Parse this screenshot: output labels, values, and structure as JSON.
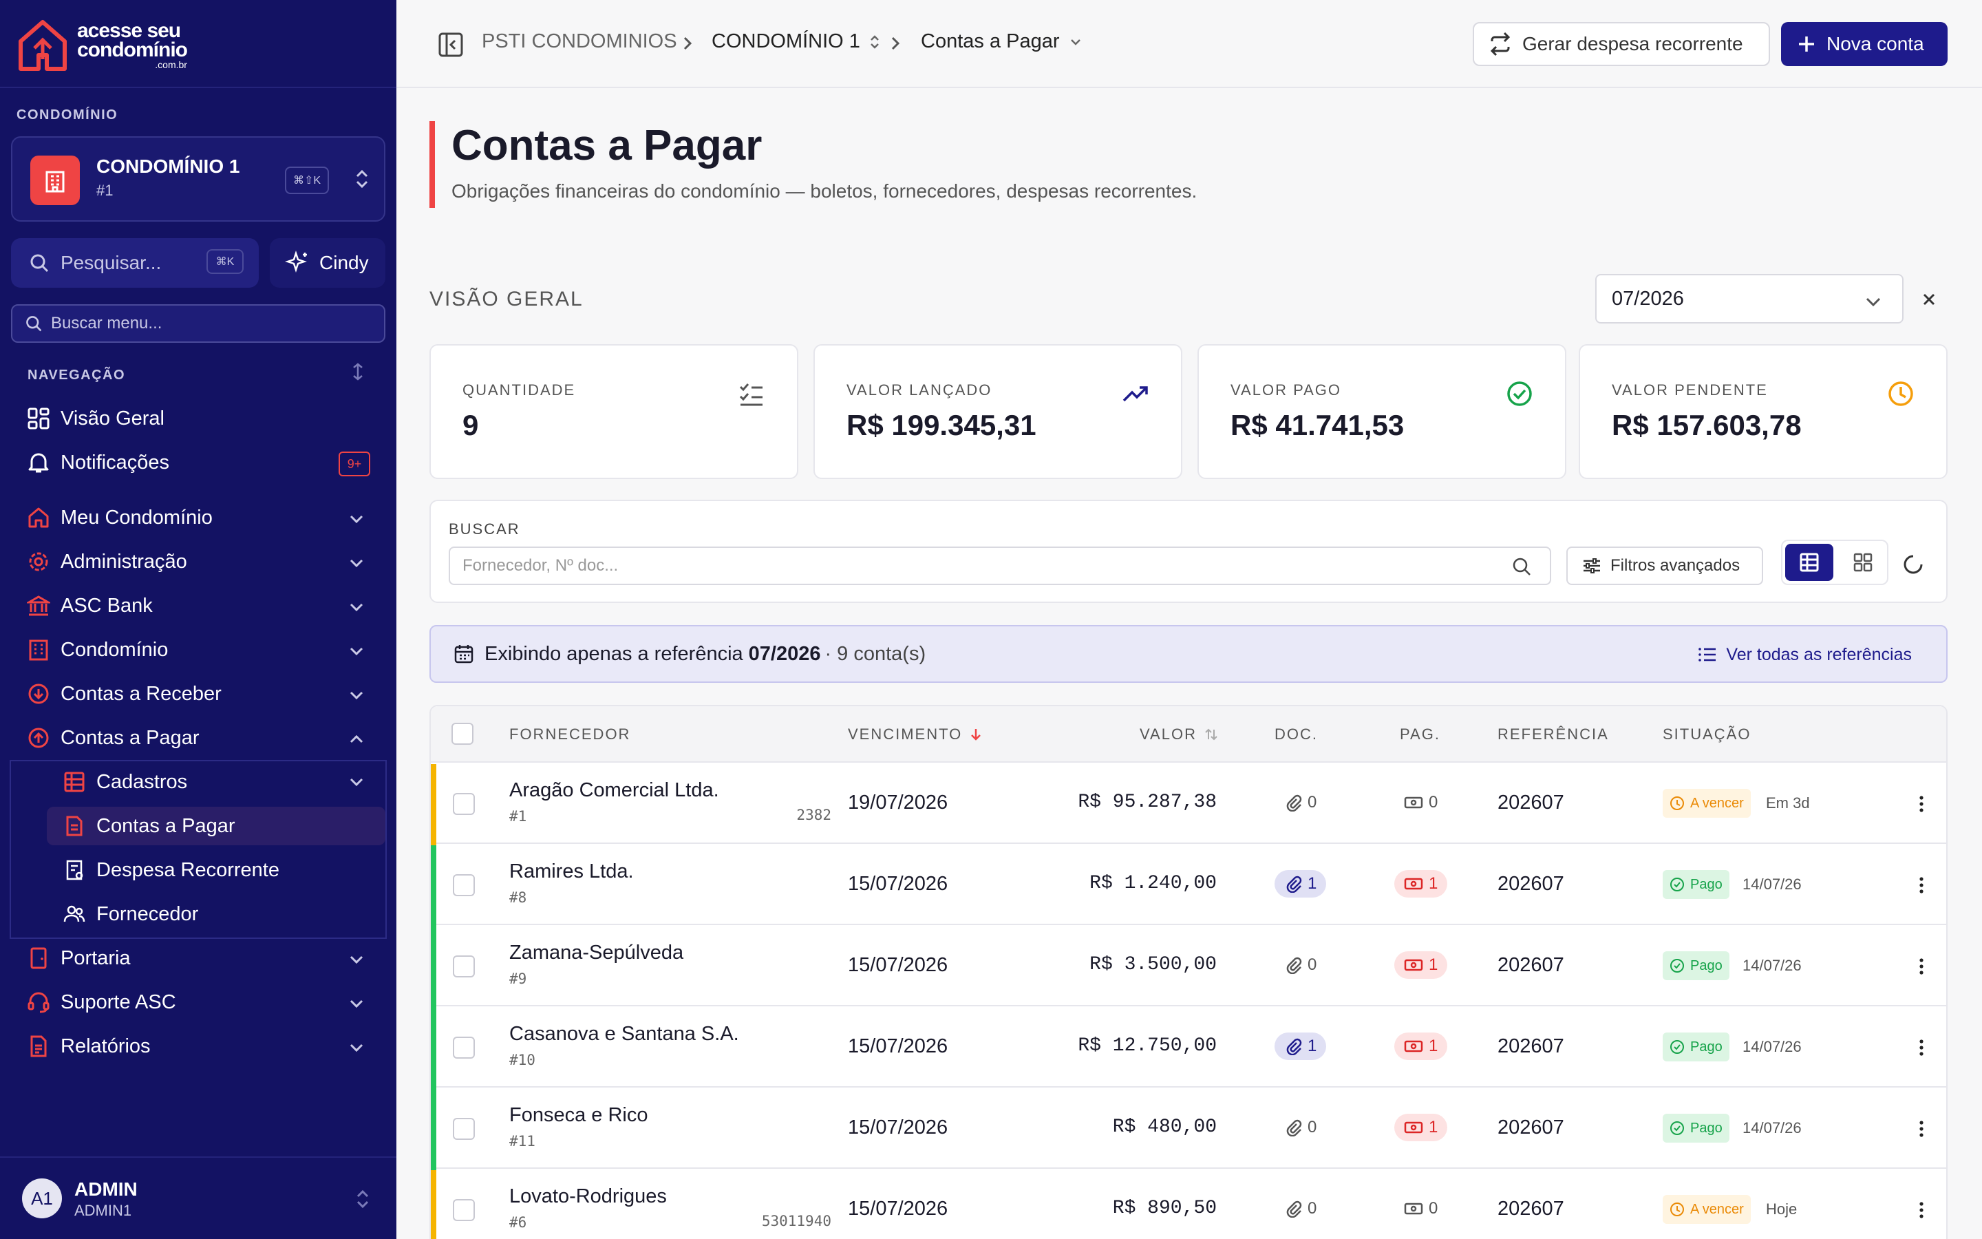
{
  "sidebar": {
    "logo": {
      "line1": "acesse seu",
      "line2": "condomínio",
      "line3": ".com.br"
    },
    "condo_section": "CONDOMÍNIO",
    "condo": {
      "name": "CONDOMÍNIO 1",
      "sub": "#1",
      "kbd": "⌘⇧K"
    },
    "search": {
      "placeholder": "Pesquisar...",
      "kbd": "⌘K"
    },
    "assistant": "Cindy",
    "menu_search_placeholder": "Buscar menu...",
    "nav_section": "NAVEGAÇÃO",
    "items": [
      {
        "label": "Visão Geral",
        "icon": "grid-icon"
      },
      {
        "label": "Notificações",
        "icon": "bell-icon",
        "badge": "9+"
      },
      {
        "label": "Meu Condomínio",
        "icon": "home-icon"
      },
      {
        "label": "Administração",
        "icon": "gear-icon"
      },
      {
        "label": "ASC Bank",
        "icon": "bank-icon"
      },
      {
        "label": "Condomínio",
        "icon": "building-icon"
      },
      {
        "label": "Contas a Receber",
        "icon": "arrow-down-circle-icon"
      },
      {
        "label": "Contas a Pagar",
        "icon": "arrow-up-circle-icon"
      },
      {
        "label": "Portaria",
        "icon": "door-icon"
      },
      {
        "label": "Suporte ASC",
        "icon": "headset-icon"
      },
      {
        "label": "Relatórios",
        "icon": "report-icon"
      }
    ],
    "sub_items": [
      {
        "label": "Cadastros"
      },
      {
        "label": "Contas a Pagar"
      },
      {
        "label": "Despesa Recorrente"
      },
      {
        "label": "Fornecedor"
      }
    ],
    "user": {
      "initials": "A1",
      "name": "ADMIN",
      "role": "ADMIN1"
    }
  },
  "topbar": {
    "breadcrumb": [
      "PSTI CONDOMINIOS",
      "CONDOMÍNIO 1",
      "Contas a Pagar"
    ],
    "btn_recurring": "Gerar despesa recorrente",
    "btn_new": "Nova conta"
  },
  "page": {
    "title": "Contas a Pagar",
    "subtitle": "Obrigações financeiras do condomínio — boletos, fornecedores, despesas recorrentes.",
    "overview_label": "VISÃO GERAL",
    "month": "07/2026"
  },
  "cards": [
    {
      "label": "QUANTIDADE",
      "value": "9",
      "icon": "checklist-icon"
    },
    {
      "label": "VALOR LANÇADO",
      "value": "R$ 199.345,31",
      "icon": "trending-up-icon"
    },
    {
      "label": "VALOR PAGO",
      "value": "R$ 41.741,53",
      "icon": "check-circle-icon",
      "color": "#16a34a"
    },
    {
      "label": "VALOR PENDENTE",
      "value": "R$ 157.603,78",
      "icon": "clock-icon",
      "color": "#f59e0b"
    }
  ],
  "filters": {
    "label": "BUSCAR",
    "placeholder": "Fornecedor, Nº doc...",
    "advanced": "Filtros avançados"
  },
  "info": {
    "prefix": "Exibindo apenas a referência",
    "ref": "07/2026",
    "count": "· 9 conta(s)",
    "view_all": "Ver todas as referências"
  },
  "table": {
    "headers": [
      "FORNECEDOR",
      "VENCIMENTO",
      "VALOR",
      "DOC.",
      "PAG.",
      "REFERÊNCIA",
      "SITUAÇÃO"
    ],
    "rows": [
      {
        "fornecedor": "Aragão Comercial Ltda.",
        "id": "#1",
        "doc_num": "2382",
        "vencimento": "19/07/2026",
        "valor": "R$ 95.287,38",
        "doc": "0",
        "pag": "0",
        "ref": "202607",
        "situacao": "A vencer",
        "sit_date": "Em 3d",
        "status": "pending"
      },
      {
        "fornecedor": "Ramires Ltda.",
        "id": "#8",
        "doc_num": "",
        "vencimento": "15/07/2026",
        "valor": "R$ 1.240,00",
        "doc": "1",
        "pag": "1",
        "ref": "202607",
        "situacao": "Pago",
        "sit_date": "14/07/26",
        "status": "paid"
      },
      {
        "fornecedor": "Zamana-Sepúlveda",
        "id": "#9",
        "doc_num": "",
        "vencimento": "15/07/2026",
        "valor": "R$ 3.500,00",
        "doc": "0",
        "pag": "1",
        "ref": "202607",
        "situacao": "Pago",
        "sit_date": "14/07/26",
        "status": "paid"
      },
      {
        "fornecedor": "Casanova e Santana S.A.",
        "id": "#10",
        "doc_num": "",
        "vencimento": "15/07/2026",
        "valor": "R$ 12.750,00",
        "doc": "1",
        "pag": "1",
        "ref": "202607",
        "situacao": "Pago",
        "sit_date": "14/07/26",
        "status": "paid"
      },
      {
        "fornecedor": "Fonseca e Rico",
        "id": "#11",
        "doc_num": "",
        "vencimento": "15/07/2026",
        "valor": "R$ 480,00",
        "doc": "0",
        "pag": "1",
        "ref": "202607",
        "situacao": "Pago",
        "sit_date": "14/07/26",
        "status": "paid"
      },
      {
        "fornecedor": "Lovato-Rodrigues",
        "id": "#6",
        "doc_num": "53011940",
        "vencimento": "15/07/2026",
        "valor": "R$ 890,50",
        "doc": "0",
        "pag": "0",
        "ref": "202607",
        "situacao": "A vencer",
        "sit_date": "Hoje",
        "status": "pending"
      }
    ]
  },
  "colors": {
    "sidebar": "#131263",
    "accent": "#1e1b8c",
    "danger": "#ef4444",
    "paid": "#16a34a",
    "pending": "#f59e0b"
  }
}
